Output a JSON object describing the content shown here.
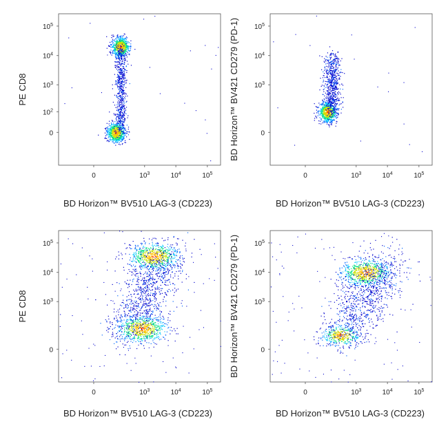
{
  "chart_data": [
    {
      "type": "scatter",
      "panel": "top-left",
      "xlabel": "BD Horizon™ BV510 LAG-3 (CD223)",
      "ylabel": "PE CD8",
      "x_scale": "biexponential",
      "y_scale": "biexponential",
      "x_ticks": [
        "0",
        "10^3",
        "10^4",
        "10^5"
      ],
      "y_ticks": [
        "0",
        "10^2",
        "10^3",
        "10^4",
        "10^5"
      ],
      "grid": false,
      "legend": "none",
      "populations": [
        {
          "description": "CD8- LAG-3- cluster",
          "x_center": 100,
          "y_center": 0,
          "density": "high"
        },
        {
          "description": "CD8+ LAG-3- cluster",
          "x_center": 150,
          "y_center": 20000,
          "density": "high"
        },
        {
          "description": "vertical bridge",
          "x_center": 150,
          "y_range": [
            0,
            20000
          ],
          "density": "medium"
        }
      ]
    },
    {
      "type": "scatter",
      "panel": "top-right",
      "xlabel": "BD Horizon™ BV510 LAG-3 (CD223)",
      "ylabel": "BD Horizon™ BV421 CD279 (PD-1)",
      "x_scale": "biexponential",
      "y_scale": "biexponential",
      "x_ticks": [
        "0",
        "10^3",
        "10^4",
        "10^5"
      ],
      "y_ticks": [
        "0",
        "10^3",
        "10^4",
        "10^5"
      ],
      "grid": false,
      "legend": "none",
      "populations": [
        {
          "description": "PD-1 low/int LAG-3- cluster",
          "x_center": 100,
          "y_center": 100,
          "density": "high"
        },
        {
          "description": "PD-1+ tail",
          "x_center": 150,
          "y_range": [
            100,
            10000
          ],
          "density": "medium"
        }
      ]
    },
    {
      "type": "scatter",
      "panel": "bottom-left",
      "xlabel": "BD Horizon™ BV510 LAG-3 (CD223)",
      "ylabel": "PE CD8",
      "x_scale": "biexponential",
      "y_scale": "biexponential",
      "x_ticks": [
        "0",
        "10^3",
        "10^4",
        "10^5"
      ],
      "y_ticks": [
        "0",
        "10^3",
        "10^4",
        "10^5"
      ],
      "grid": false,
      "legend": "none",
      "populations": [
        {
          "description": "CD8+ LAG-3+ cluster",
          "x_center": 2000,
          "y_center": 35000,
          "density": "high"
        },
        {
          "description": "CD8- LAG-3+ cluster",
          "x_center": 800,
          "y_center": 100,
          "density": "high"
        },
        {
          "description": "intermediate bridge",
          "x_range": [
            300,
            5000
          ],
          "y_range": [
            100,
            35000
          ],
          "density": "low"
        }
      ]
    },
    {
      "type": "scatter",
      "panel": "bottom-right",
      "xlabel": "BD Horizon™ BV510 LAG-3 (CD223)",
      "ylabel": "BD Horizon™ BV421 CD279 (PD-1)",
      "x_scale": "biexponential",
      "y_scale": "biexponential",
      "x_ticks": [
        "0",
        "10^3",
        "10^4",
        "10^5"
      ],
      "y_ticks": [
        "0",
        "10^3",
        "10^4",
        "10^5"
      ],
      "grid": false,
      "legend": "none",
      "populations": [
        {
          "description": "PD-1+ LAG-3+ cluster",
          "x_center": 2000,
          "y_center": 10000,
          "density": "high"
        },
        {
          "description": "PD-1 low LAG-3 low cluster",
          "x_center": 300,
          "y_center": 50,
          "density": "medium"
        },
        {
          "description": "diagonal spread",
          "x_range": [
            300,
            10000
          ],
          "y_range": [
            50,
            20000
          ],
          "density": "low"
        }
      ]
    }
  ],
  "color_scale": [
    "#0000cc",
    "#0066ff",
    "#00c8ff",
    "#00e080",
    "#c8e000",
    "#ffc000",
    "#ff4000"
  ]
}
